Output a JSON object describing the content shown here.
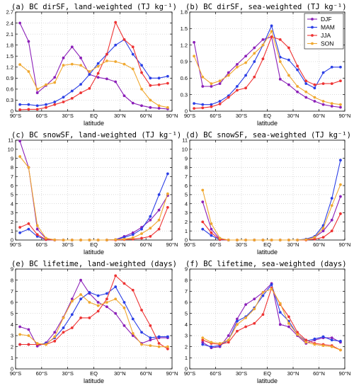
{
  "x_tick_labels": [
    "90°S",
    "60°S",
    "30°S",
    "EQ",
    "30°N",
    "60°N",
    "90°N"
  ],
  "x_tick_values": [
    -90,
    -60,
    -30,
    0,
    30,
    60,
    90
  ],
  "colors": {
    "DJF": "#8b1fb8",
    "MAM": "#2b3fe6",
    "JJA": "#ee3333",
    "SON": "#f0a830"
  },
  "chart_data": [
    {
      "type": "line",
      "title": "(a)  BC dirSF, land-weighted (TJ kg⁻¹)",
      "xlabel": "latitude",
      "ylabel": "",
      "xlim": [
        -90,
        90
      ],
      "ylim": [
        0,
        2.7
      ],
      "yticks": [
        0,
        0.3,
        0.6,
        0.9,
        1.2,
        1.5,
        1.8,
        2.1,
        2.4,
        2.7
      ],
      "ytick_labels": [
        "0",
        "0.3",
        "0.6",
        "0.9",
        "1.2",
        "1.5",
        "1.8",
        "2.1",
        "2.4",
        "2.7"
      ],
      "grid": true,
      "legend": null,
      "x": [
        -85,
        -75,
        -65,
        -55,
        -45,
        -35,
        -25,
        -15,
        -5,
        5,
        15,
        25,
        35,
        45,
        55,
        65,
        75,
        85
      ],
      "series": [
        {
          "name": "DJF",
          "values": [
            2.4,
            1.9,
            0.5,
            0.7,
            0.92,
            1.45,
            1.75,
            1.45,
            1.0,
            0.92,
            0.88,
            0.8,
            0.42,
            0.22,
            0.15,
            0.1,
            0.08,
            0.06
          ]
        },
        {
          "name": "MAM",
          "values": [
            0.18,
            0.18,
            0.15,
            0.18,
            0.25,
            0.38,
            0.55,
            0.73,
            1.0,
            1.3,
            1.55,
            1.8,
            1.95,
            1.55,
            1.25,
            0.9,
            0.9,
            0.95
          ]
        },
        {
          "name": "JJA",
          "values": [
            0.04,
            0.05,
            0.05,
            0.1,
            0.18,
            0.25,
            0.35,
            0.5,
            0.62,
            1.03,
            1.55,
            2.42,
            1.95,
            1.75,
            1.05,
            0.7,
            0.72,
            0.76
          ]
        },
        {
          "name": "SON",
          "values": [
            1.27,
            1.08,
            0.6,
            0.72,
            0.78,
            1.25,
            1.28,
            1.25,
            1.08,
            1.22,
            1.37,
            1.35,
            1.28,
            1.15,
            0.6,
            0.3,
            0.15,
            0.1
          ]
        }
      ]
    },
    {
      "type": "line",
      "title": "(b)  BC dirSF, sea-weighted (TJ kg⁻¹)",
      "xlabel": "latitude",
      "ylabel": "",
      "xlim": [
        -90,
        90
      ],
      "ylim": [
        0,
        1.8
      ],
      "yticks": [
        0,
        0.3,
        0.6,
        0.9,
        1.2,
        1.5,
        1.8
      ],
      "ytick_labels": [
        "0",
        "0.3",
        "0.6",
        "0.9",
        "1.2",
        "1.5",
        "1.8"
      ],
      "grid": true,
      "legend": "top-right",
      "x": [
        -85,
        -75,
        -65,
        -55,
        -45,
        -35,
        -25,
        -15,
        -5,
        5,
        15,
        25,
        35,
        45,
        55,
        65,
        75,
        85
      ],
      "series": [
        {
          "name": "DJF",
          "values": [
            1.25,
            0.45,
            0.45,
            0.5,
            0.7,
            0.85,
            1.0,
            1.15,
            1.3,
            1.35,
            0.58,
            0.48,
            0.35,
            0.25,
            0.18,
            0.12,
            0.09,
            0.07
          ]
        },
        {
          "name": "MAM",
          "values": [
            0.14,
            0.12,
            0.12,
            0.18,
            0.28,
            0.45,
            0.65,
            0.9,
            1.2,
            1.55,
            0.98,
            0.93,
            0.75,
            0.5,
            0.42,
            0.7,
            0.8,
            0.8
          ]
        },
        {
          "name": "JJA",
          "values": [
            0.05,
            0.06,
            0.08,
            0.13,
            0.25,
            0.38,
            0.42,
            0.62,
            0.95,
            1.35,
            1.3,
            1.15,
            0.82,
            0.55,
            0.48,
            0.5,
            0.5,
            0.55
          ]
        },
        {
          "name": "SON",
          "values": [
            1.0,
            0.62,
            0.5,
            0.55,
            0.65,
            0.8,
            0.88,
            1.05,
            1.2,
            1.45,
            0.9,
            0.65,
            0.45,
            0.35,
            0.25,
            0.18,
            0.14,
            0.12
          ]
        }
      ]
    },
    {
      "type": "line",
      "title": "(c)  BC snowSF, land-weighted (TJ kg⁻¹)",
      "xlabel": "latitude",
      "ylabel": "",
      "xlim": [
        -90,
        90
      ],
      "ylim": [
        0,
        11
      ],
      "yticks": [
        0,
        1,
        2,
        3,
        4,
        5,
        6,
        7,
        8,
        9,
        10,
        11
      ],
      "ytick_labels": [
        "0",
        "1",
        "2",
        "3",
        "4",
        "5",
        "6",
        "7",
        "8",
        "9",
        "10",
        "11"
      ],
      "grid": true,
      "legend": null,
      "x": [
        -85,
        -75,
        -65,
        -55,
        -45,
        -35,
        -25,
        -15,
        -5,
        5,
        15,
        25,
        35,
        45,
        55,
        65,
        75,
        85
      ],
      "series": [
        {
          "name": "DJF",
          "values": [
            10.9,
            8.0,
            1.2,
            0.15,
            0.02,
            0,
            0,
            0,
            0,
            0,
            0,
            0.05,
            0.4,
            0.8,
            1.4,
            2.2,
            3.3,
            4.9
          ]
        },
        {
          "name": "MAM",
          "values": [
            0.8,
            1.2,
            0.4,
            0.05,
            0,
            0,
            0,
            0,
            0,
            0,
            0,
            0.05,
            0.3,
            0.6,
            1.2,
            2.6,
            5.0,
            7.3
          ]
        },
        {
          "name": "JJA",
          "values": [
            1.4,
            1.8,
            0.6,
            0.05,
            0,
            0,
            0,
            0,
            0,
            0,
            0,
            0,
            0.05,
            0.1,
            0.2,
            0.4,
            1.2,
            3.6
          ]
        },
        {
          "name": "SON",
          "values": [
            9.2,
            8.0,
            1.6,
            0.2,
            0.02,
            0,
            0,
            0,
            0,
            0,
            0,
            0.05,
            0.1,
            0.25,
            0.7,
            1.3,
            2.2,
            5.1
          ]
        }
      ]
    },
    {
      "type": "line",
      "title": "(d)  BC snowSF, sea-weighted (TJ kg⁻¹)",
      "xlabel": "latitude",
      "ylabel": "",
      "xlim": [
        -90,
        90
      ],
      "ylim": [
        0,
        11
      ],
      "yticks": [
        0,
        1,
        2,
        3,
        4,
        5,
        6,
        7,
        8,
        9,
        10,
        11
      ],
      "ytick_labels": [
        "0",
        "1",
        "2",
        "3",
        "4",
        "5",
        "6",
        "7",
        "8",
        "9",
        "10",
        "11"
      ],
      "grid": true,
      "legend": null,
      "x": [
        -75,
        -65,
        -55,
        -45,
        -35,
        -25,
        -15,
        -5,
        5,
        15,
        25,
        35,
        45,
        55,
        65,
        75,
        85
      ],
      "series": [
        {
          "name": "DJF",
          "values": [
            4.2,
            1.2,
            0.1,
            0,
            0,
            0,
            0,
            0,
            0,
            0,
            0,
            0,
            0.05,
            0.3,
            1.0,
            2.2,
            4.8
          ]
        },
        {
          "name": "MAM",
          "values": [
            1.2,
            0.5,
            0.05,
            0,
            0,
            0,
            0,
            0,
            0,
            0,
            0,
            0,
            0.1,
            0.4,
            1.6,
            4.6,
            8.8
          ]
        },
        {
          "name": "JJA",
          "values": [
            2.0,
            0.8,
            0.05,
            0,
            0,
            0,
            0,
            0,
            0,
            0,
            0,
            0,
            0,
            0.1,
            0.3,
            1.0,
            2.9
          ]
        },
        {
          "name": "SON",
          "values": [
            5.5,
            1.8,
            0.2,
            0,
            0,
            0,
            0,
            0,
            0,
            0,
            0,
            0,
            0.05,
            0.3,
            1.3,
            3.8,
            6.1
          ]
        }
      ]
    },
    {
      "type": "line",
      "title": "(e)  BC lifetime, land-weighted (days)",
      "xlabel": "latitude",
      "ylabel": "",
      "xlim": [
        -90,
        90
      ],
      "ylim": [
        0,
        9
      ],
      "yticks": [
        0,
        1,
        2,
        3,
        4,
        5,
        6,
        7,
        8,
        9
      ],
      "ytick_labels": [
        "0",
        "1",
        "2",
        "3",
        "4",
        "5",
        "6",
        "7",
        "8",
        "9"
      ],
      "grid": true,
      "legend": null,
      "x": [
        -85,
        -75,
        -65,
        -55,
        -45,
        -35,
        -25,
        -15,
        -5,
        5,
        15,
        25,
        35,
        45,
        55,
        65,
        75,
        85
      ],
      "series": [
        {
          "name": "DJF",
          "values": [
            3.8,
            3.55,
            2.05,
            2.35,
            3.3,
            4.65,
            6.3,
            8.0,
            6.8,
            6.0,
            5.6,
            5.0,
            3.9,
            3.0,
            2.3,
            2.6,
            2.8,
            2.8
          ]
        },
        {
          "name": "MAM",
          "values": [
            2.2,
            2.2,
            2.2,
            2.3,
            2.8,
            3.7,
            4.9,
            6.3,
            6.9,
            6.6,
            6.8,
            7.4,
            6.0,
            4.5,
            3.3,
            2.8,
            2.9,
            2.9
          ]
        },
        {
          "name": "JJA",
          "values": [
            2.2,
            2.2,
            2.2,
            2.2,
            2.5,
            3.3,
            3.7,
            4.6,
            4.6,
            5.2,
            6.3,
            8.4,
            7.7,
            7.1,
            5.3,
            3.9,
            2.3,
            1.8
          ]
        },
        {
          "name": "SON",
          "values": [
            3.1,
            3.0,
            2.3,
            2.2,
            2.9,
            4.6,
            6.1,
            6.7,
            6.0,
            5.7,
            6.0,
            6.3,
            5.5,
            3.2,
            2.2,
            2.1,
            2.0,
            2.0
          ]
        }
      ]
    },
    {
      "type": "line",
      "title": "(f)  BC lifetime, sea-weighted (days)",
      "xlabel": "latitude",
      "ylabel": "",
      "xlim": [
        -90,
        90
      ],
      "ylim": [
        0,
        9
      ],
      "yticks": [
        0,
        1,
        2,
        3,
        4,
        5,
        6,
        7,
        8,
        9
      ],
      "ytick_labels": [
        "0",
        "1",
        "2",
        "3",
        "4",
        "5",
        "6",
        "7",
        "8",
        "9"
      ],
      "grid": true,
      "legend": null,
      "x": [
        -75,
        -65,
        -55,
        -45,
        -35,
        -25,
        -15,
        -5,
        5,
        15,
        25,
        35,
        45,
        55,
        65,
        75,
        85
      ],
      "series": [
        {
          "name": "DJF",
          "values": [
            2.4,
            1.9,
            2.0,
            3.0,
            4.5,
            5.8,
            6.3,
            6.9,
            7.7,
            4.0,
            3.8,
            3.0,
            2.3,
            2.6,
            2.8,
            2.8,
            2.4
          ]
        },
        {
          "name": "MAM",
          "values": [
            2.2,
            2.0,
            2.1,
            2.6,
            4.3,
            4.7,
            5.5,
            6.6,
            7.6,
            5.1,
            4.3,
            3.1,
            2.5,
            2.7,
            2.9,
            2.6,
            2.5
          ]
        },
        {
          "name": "JJA",
          "values": [
            2.6,
            2.3,
            2.2,
            2.4,
            3.4,
            3.8,
            4.1,
            4.9,
            7.3,
            5.8,
            4.7,
            3.3,
            2.6,
            2.3,
            2.2,
            2.1,
            1.7
          ]
        },
        {
          "name": "SON",
          "values": [
            2.8,
            2.4,
            2.3,
            2.6,
            4.0,
            4.6,
            5.4,
            6.9,
            7.2,
            5.9,
            4.1,
            3.1,
            2.4,
            2.2,
            2.1,
            2.0,
            1.7
          ]
        }
      ]
    }
  ]
}
